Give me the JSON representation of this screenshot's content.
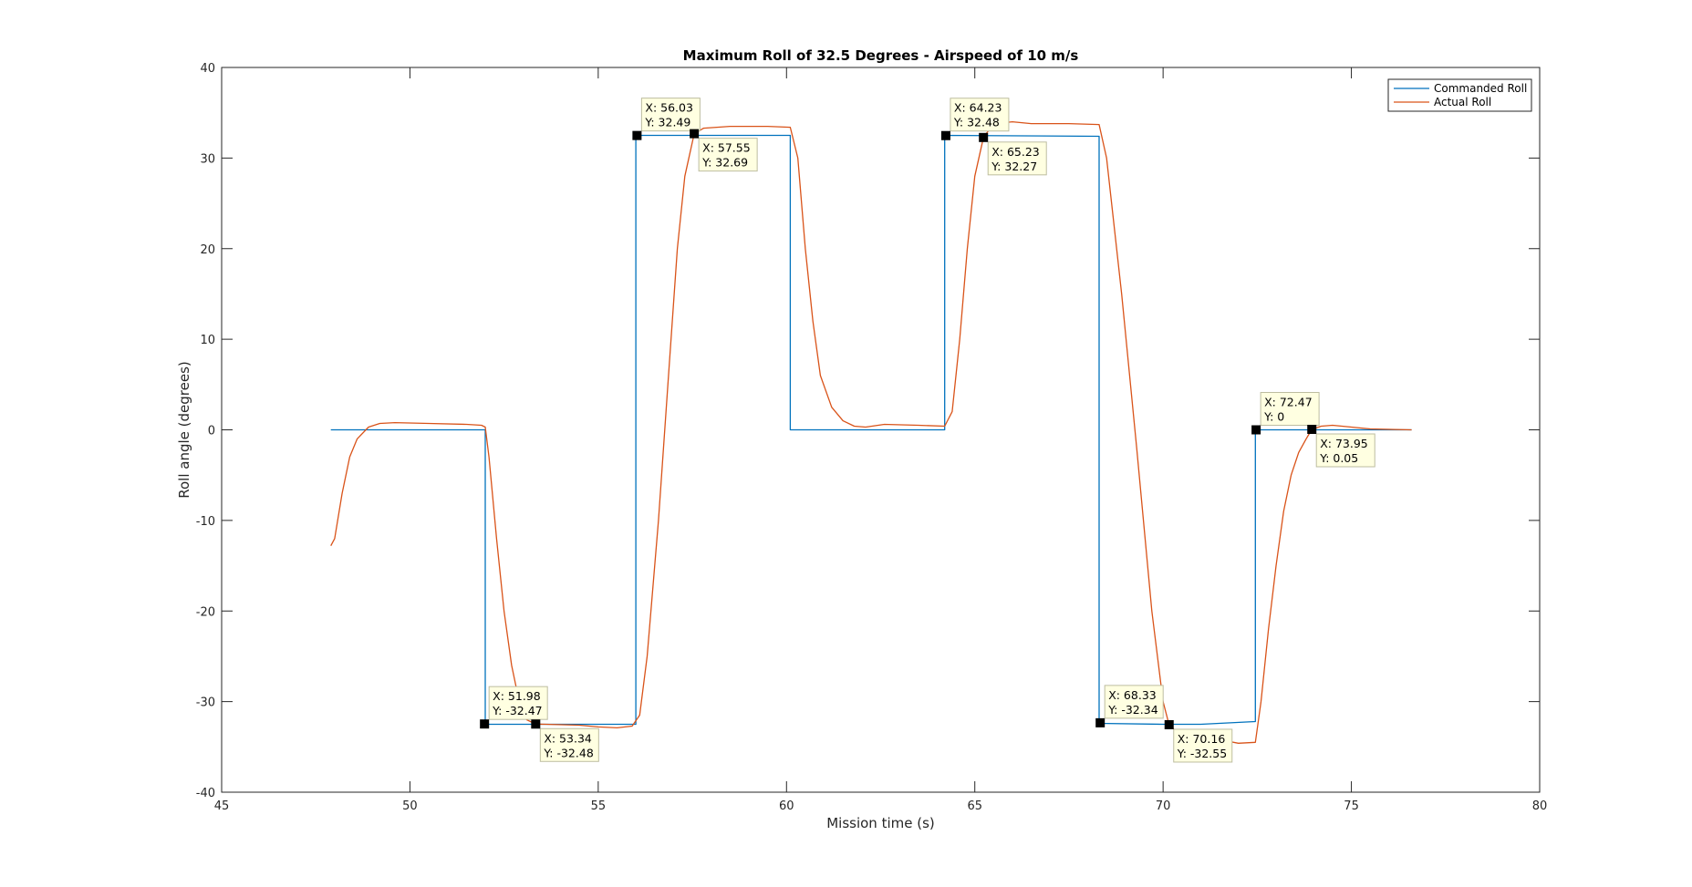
{
  "chart_data": {
    "type": "line",
    "title": "Maximum Roll of 32.5 Degrees - Airspeed of 10 m/s",
    "xlabel": "Mission time (s)",
    "ylabel": "Roll angle (degrees)",
    "xlim": [
      45,
      80
    ],
    "ylim": [
      -40,
      40
    ],
    "xticks": [
      45,
      50,
      55,
      60,
      65,
      70,
      75,
      80
    ],
    "yticks": [
      -40,
      -30,
      -20,
      -10,
      0,
      10,
      20,
      30,
      40
    ],
    "xtick_labels": [
      "45",
      "50",
      "55",
      "60",
      "65",
      "70",
      "75",
      "80"
    ],
    "ytick_labels": [
      "-40",
      "-30",
      "-20",
      "-10",
      "0",
      "10",
      "20",
      "30",
      "40"
    ],
    "grid": false,
    "legend_position": "top-right",
    "series": [
      {
        "name": "Commanded Roll",
        "color": "#0072BD",
        "points": [
          [
            47.9,
            0
          ],
          [
            52.0,
            0
          ],
          [
            52.0,
            -32.5
          ],
          [
            56.0,
            -32.5
          ],
          [
            56.0,
            32.5
          ],
          [
            60.1,
            32.5
          ],
          [
            60.1,
            0
          ],
          [
            64.2,
            0
          ],
          [
            64.2,
            32.5
          ],
          [
            68.3,
            32.4
          ],
          [
            68.3,
            -32.4
          ],
          [
            70.0,
            -32.5
          ],
          [
            71.0,
            -32.5
          ],
          [
            72.45,
            -32.2
          ],
          [
            72.45,
            0
          ],
          [
            76.6,
            0
          ]
        ]
      },
      {
        "name": "Actual Roll",
        "color": "#D95319",
        "points": [
          [
            47.9,
            -12.8
          ],
          [
            48.0,
            -12.0
          ],
          [
            48.2,
            -7.0
          ],
          [
            48.4,
            -3.0
          ],
          [
            48.6,
            -1.0
          ],
          [
            48.9,
            0.3
          ],
          [
            49.2,
            0.7
          ],
          [
            49.6,
            0.8
          ],
          [
            50.5,
            0.7
          ],
          [
            51.5,
            0.6
          ],
          [
            51.9,
            0.5
          ],
          [
            52.0,
            0.3
          ],
          [
            52.1,
            -3.0
          ],
          [
            52.3,
            -12.0
          ],
          [
            52.5,
            -20.0
          ],
          [
            52.7,
            -26.0
          ],
          [
            52.9,
            -30.0
          ],
          [
            53.1,
            -32.0
          ],
          [
            53.34,
            -32.48
          ],
          [
            53.6,
            -32.5
          ],
          [
            54.5,
            -32.6
          ],
          [
            55.0,
            -32.8
          ],
          [
            55.5,
            -32.9
          ],
          [
            55.9,
            -32.7
          ],
          [
            56.1,
            -31.5
          ],
          [
            56.3,
            -25.0
          ],
          [
            56.6,
            -10.0
          ],
          [
            56.9,
            8.0
          ],
          [
            57.1,
            20.0
          ],
          [
            57.3,
            28.0
          ],
          [
            57.55,
            32.69
          ],
          [
            57.8,
            33.3
          ],
          [
            58.5,
            33.5
          ],
          [
            59.5,
            33.5
          ],
          [
            60.1,
            33.4
          ],
          [
            60.3,
            30.0
          ],
          [
            60.5,
            20.0
          ],
          [
            60.7,
            12.0
          ],
          [
            60.9,
            6.0
          ],
          [
            61.2,
            2.5
          ],
          [
            61.5,
            1.0
          ],
          [
            61.8,
            0.4
          ],
          [
            62.1,
            0.3
          ],
          [
            62.6,
            0.6
          ],
          [
            63.5,
            0.5
          ],
          [
            64.2,
            0.4
          ],
          [
            64.4,
            2.0
          ],
          [
            64.6,
            10.0
          ],
          [
            64.8,
            20.0
          ],
          [
            65.0,
            28.0
          ],
          [
            65.23,
            32.27
          ],
          [
            65.5,
            33.8
          ],
          [
            66.0,
            34.0
          ],
          [
            66.5,
            33.8
          ],
          [
            67.5,
            33.8
          ],
          [
            68.3,
            33.7
          ],
          [
            68.5,
            30.0
          ],
          [
            68.9,
            15.0
          ],
          [
            69.3,
            -2.0
          ],
          [
            69.7,
            -20.0
          ],
          [
            70.0,
            -30.0
          ],
          [
            70.16,
            -32.55
          ],
          [
            70.4,
            -33.5
          ],
          [
            71.0,
            -33.8
          ],
          [
            71.5,
            -34.2
          ],
          [
            72.0,
            -34.6
          ],
          [
            72.45,
            -34.5
          ],
          [
            72.6,
            -30.0
          ],
          [
            72.8,
            -22.0
          ],
          [
            73.0,
            -15.0
          ],
          [
            73.2,
            -9.0
          ],
          [
            73.4,
            -5.0
          ],
          [
            73.6,
            -2.5
          ],
          [
            73.8,
            -1.0
          ],
          [
            73.95,
            0.05
          ],
          [
            74.2,
            0.4
          ],
          [
            74.5,
            0.5
          ],
          [
            75.0,
            0.3
          ],
          [
            75.5,
            0.1
          ],
          [
            76.6,
            0.0
          ]
        ]
      }
    ],
    "datatips": [
      {
        "x": 51.98,
        "y": -32.47,
        "x_text": "X: 51.98",
        "y_text": "Y: -32.47",
        "placement": "above-right"
      },
      {
        "x": 53.34,
        "y": -32.48,
        "x_text": "X: 53.34",
        "y_text": "Y: -32.48",
        "placement": "below-right"
      },
      {
        "x": 56.03,
        "y": 32.49,
        "x_text": "X: 56.03",
        "y_text": "Y: 32.49",
        "placement": "above-right"
      },
      {
        "x": 57.55,
        "y": 32.69,
        "x_text": "X: 57.55",
        "y_text": "Y: 32.69",
        "placement": "below-right"
      },
      {
        "x": 64.23,
        "y": 32.48,
        "x_text": "X: 64.23",
        "y_text": "Y: 32.48",
        "placement": "above-right"
      },
      {
        "x": 65.23,
        "y": 32.27,
        "x_text": "X: 65.23",
        "y_text": "Y: 32.27",
        "placement": "below-right"
      },
      {
        "x": 68.33,
        "y": -32.34,
        "x_text": "X: 68.33",
        "y_text": "Y: -32.34",
        "placement": "above-right"
      },
      {
        "x": 70.16,
        "y": -32.55,
        "x_text": "X: 70.16",
        "y_text": "Y: -32.55",
        "placement": "below-right"
      },
      {
        "x": 72.47,
        "y": 0,
        "x_text": "X: 72.47",
        "y_text": "Y: 0",
        "placement": "above-right"
      },
      {
        "x": 73.95,
        "y": 0.05,
        "x_text": "X: 73.95",
        "y_text": "Y: 0.05",
        "placement": "below-right"
      }
    ]
  }
}
